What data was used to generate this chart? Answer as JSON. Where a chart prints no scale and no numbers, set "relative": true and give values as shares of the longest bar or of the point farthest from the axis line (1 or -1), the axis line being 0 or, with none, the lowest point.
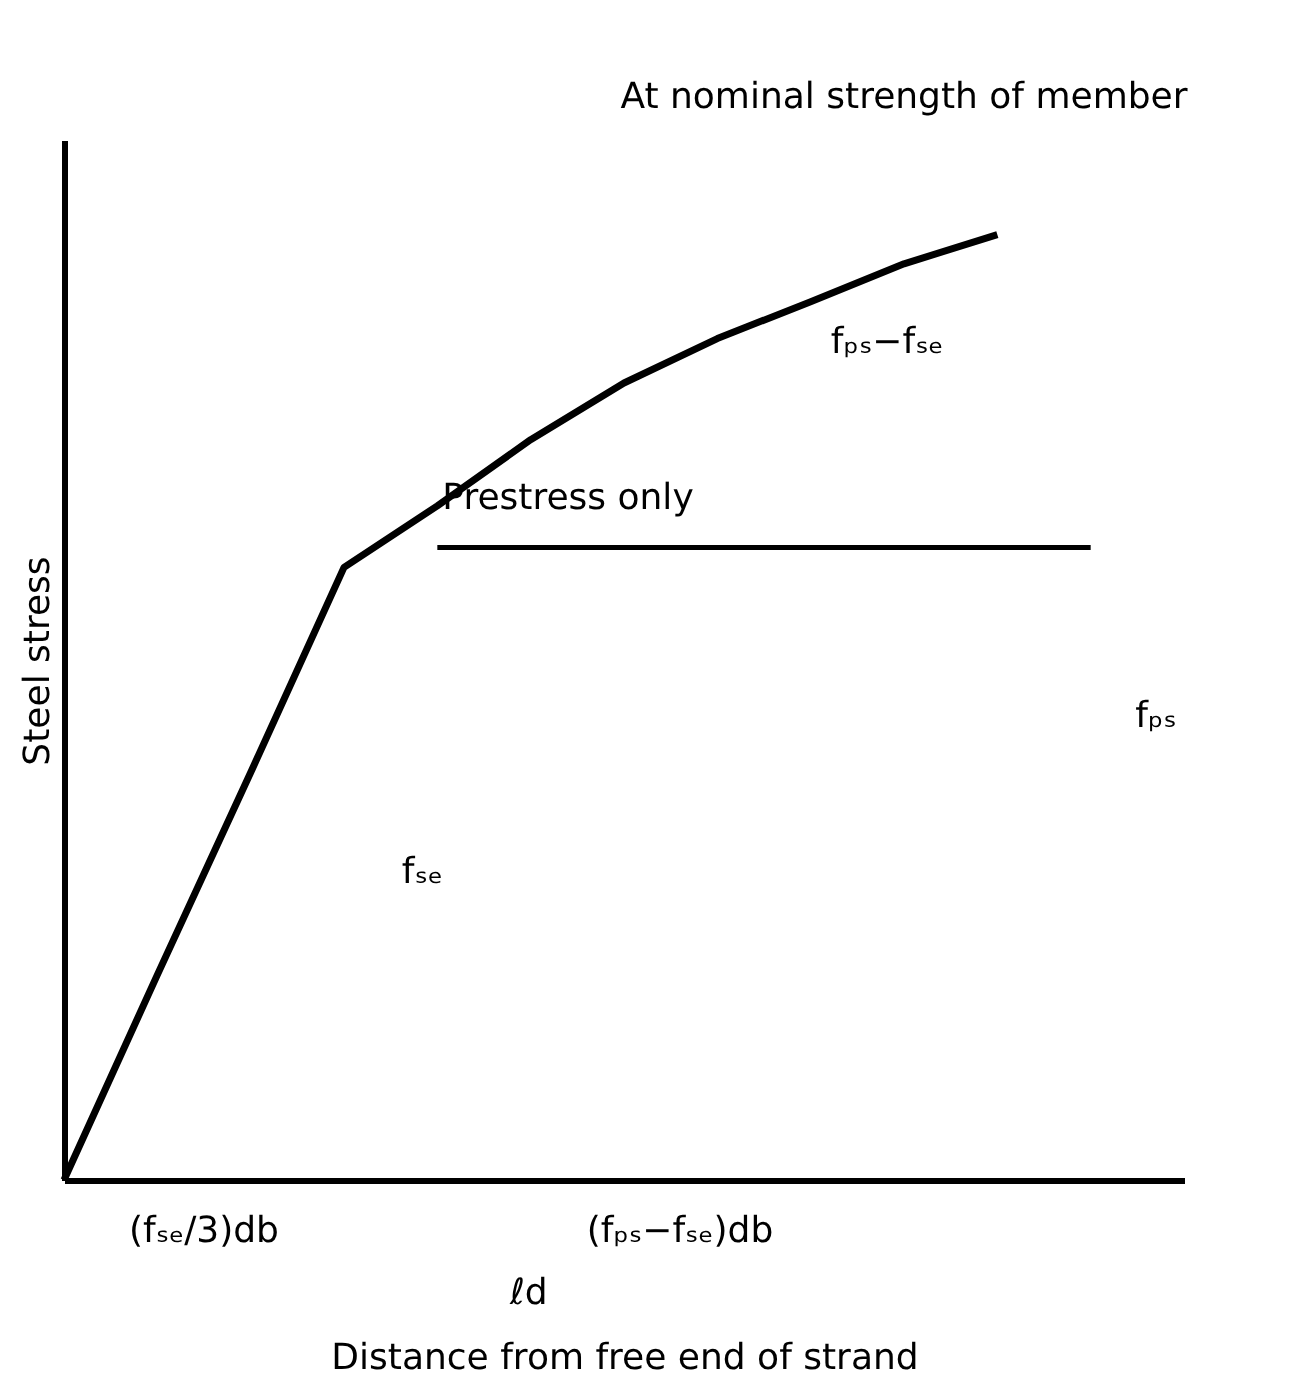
{
  "chart_data": {
    "type": "line",
    "relative": true,
    "xlabel": "Distance from free end of strand",
    "ylabel": "Steel stress",
    "grid": false,
    "marker": "none",
    "line_style": "solid",
    "categories": [
      null,
      null,
      null,
      null,
      null,
      null,
      null,
      null,
      null,
      null,
      null,
      null,
      null
    ],
    "series": [
      {
        "color": "#000000",
        "values": [
          0,
          0.217,
          0.431,
          0.648,
          0.713,
          0.783,
          0.843,
          0.89,
          0.929,
          0.969,
          1.0,
          null,
          null
        ]
      },
      {
        "color": "#000000",
        "values": [
          null,
          null,
          null,
          null,
          0.669,
          0.669,
          0.669,
          0.669,
          0.669,
          0.669,
          0.669,
          0.669,
          null
        ]
      }
    ],
    "annotations": [
      "At nominal strength of member",
      "Prestress only",
      "fₚₛ−fₛₑ",
      "fₚₛ",
      "fₛₑ",
      "(fₛₑ/3)db",
      "(fₚₛ−fₛₑ)db",
      "ℓd"
    ]
  }
}
